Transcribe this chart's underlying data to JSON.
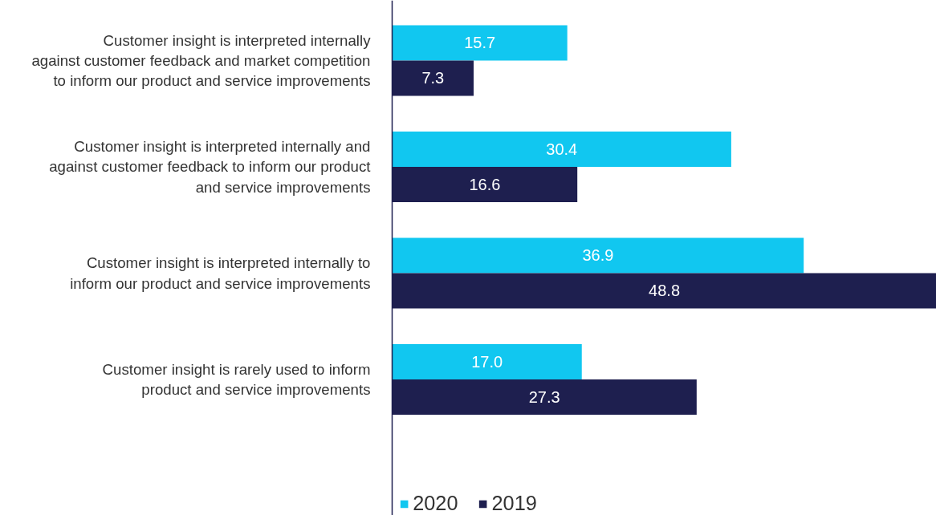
{
  "chart_data": {
    "type": "bar",
    "orientation": "horizontal",
    "categories": [
      "Customer insight is interpreted internally against customer feedback and market competition to inform our product and service improvements",
      "Customer insight is interpreted internally and against customer feedback to inform our product and service improvements",
      "Customer insight is interpreted internally to inform our product and service improvements",
      "Customer insight is rarely used to inform product and service improvements"
    ],
    "series": [
      {
        "name": "2020",
        "color": "#11c7f0",
        "values": [
          15.7,
          30.4,
          36.9,
          17.0
        ],
        "value_labels": [
          "15.7",
          "30.4",
          "36.9",
          "17.0"
        ]
      },
      {
        "name": "2019",
        "color": "#1e1f4f",
        "values": [
          7.3,
          16.6,
          48.8,
          27.3
        ],
        "value_labels": [
          "7.3",
          "16.6",
          "48.8",
          "27.3"
        ]
      }
    ],
    "legend": "bottom",
    "grid": false,
    "tick_labels": "y"
  }
}
